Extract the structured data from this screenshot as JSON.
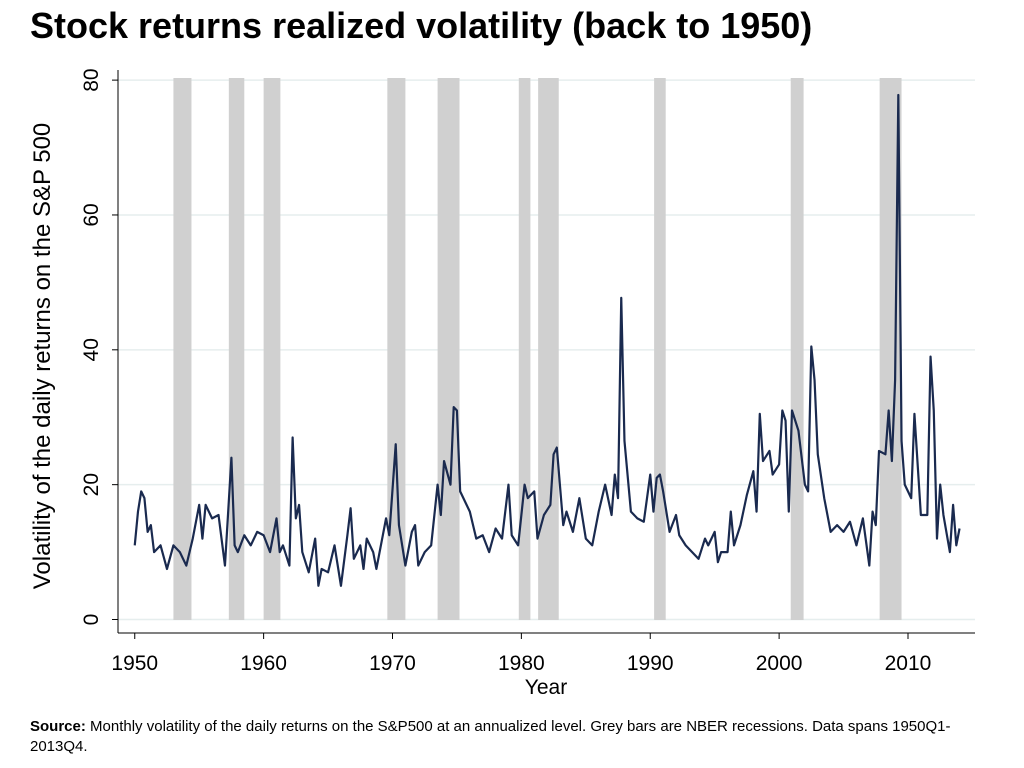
{
  "chart_data": {
    "type": "line",
    "title": "Stock returns realized volatility (back to 1950)",
    "x_label": "Year",
    "y_label": "Volatility of the daily returns on the S&P 500",
    "source_label": "Source:",
    "source_text": "Monthly volatility of the daily returns on the S&P500 at an annualized level. Grey bars are NBER recessions. Data spans 1950Q1-2013Q4.",
    "xlim": [
      1948.7,
      2015.2
    ],
    "xticks": [
      1950,
      1960,
      1970,
      1980,
      1990,
      2000,
      2010
    ],
    "ylim": [
      -2,
      81.5
    ],
    "yticks": [
      0,
      20,
      40,
      60,
      80
    ],
    "grid": true,
    "recession_color": "#d0d0d0",
    "recessions": [
      [
        1953.0,
        1954.4
      ],
      [
        1957.3,
        1958.5
      ],
      [
        1960.0,
        1961.3
      ],
      [
        1969.6,
        1971.0
      ],
      [
        1973.5,
        1975.2
      ],
      [
        1979.8,
        1980.7
      ],
      [
        1981.3,
        1982.9
      ],
      [
        1990.3,
        1991.2
      ],
      [
        2000.9,
        2001.9
      ],
      [
        2007.8,
        2009.5
      ]
    ],
    "series": [
      {
        "name": "Volatility",
        "color": "#1a2a4f",
        "x": [
          1950,
          1950.25,
          1950.5,
          1950.75,
          1951,
          1951.25,
          1951.5,
          1952,
          1952.5,
          1953,
          1953.5,
          1954,
          1954.5,
          1955,
          1955.25,
          1955.5,
          1956,
          1956.5,
          1957,
          1957.5,
          1957.75,
          1958,
          1958.5,
          1959,
          1959.5,
          1960,
          1960.5,
          1961,
          1961.25,
          1961.5,
          1962,
          1962.25,
          1962.5,
          1962.75,
          1963,
          1963.5,
          1964,
          1964.25,
          1964.5,
          1965,
          1965.5,
          1966,
          1966.5,
          1966.75,
          1967,
          1967.5,
          1967.75,
          1968,
          1968.5,
          1968.75,
          1969,
          1969.5,
          1969.75,
          1970.25,
          1970.5,
          1971,
          1971.5,
          1971.75,
          1972,
          1972.5,
          1973,
          1973.5,
          1973.75,
          1974,
          1974.5,
          1974.75,
          1975,
          1975.25,
          1975.5,
          1976,
          1976.5,
          1977,
          1977.5,
          1978,
          1978.5,
          1979,
          1979.25,
          1979.75,
          1980.25,
          1980.5,
          1981,
          1981.25,
          1981.75,
          1982.25,
          1982.5,
          1982.75,
          1983.25,
          1983.5,
          1984,
          1984.5,
          1985,
          1985.5,
          1986,
          1986.5,
          1987,
          1987.25,
          1987.5,
          1987.75,
          1988,
          1988.5,
          1989,
          1989.5,
          1990,
          1990.25,
          1990.5,
          1990.75,
          1991,
          1991.5,
          1992,
          1992.25,
          1992.75,
          1993.25,
          1993.75,
          1994.25,
          1994.5,
          1995,
          1995.25,
          1995.5,
          1996,
          1996.25,
          1996.5,
          1997,
          1997.5,
          1998,
          1998.25,
          1998.5,
          1998.75,
          1999.25,
          1999.5,
          2000,
          2000.25,
          2000.5,
          2000.75,
          2001,
          2001.5,
          2002,
          2002.25,
          2002.5,
          2002.75,
          2003,
          2003.5,
          2004,
          2004.5,
          2005,
          2005.5,
          2006,
          2006.5,
          2007,
          2007.25,
          2007.5,
          2007.75,
          2008.25,
          2008.5,
          2008.75,
          2009,
          2009.25,
          2009.5,
          2009.75,
          2010.25,
          2010.5,
          2011,
          2011.5,
          2011.75,
          2012,
          2012.25,
          2012.5,
          2012.75,
          2013.25,
          2013.5,
          2013.75,
          2014
        ],
        "values": [
          11,
          16,
          19,
          18,
          13,
          14,
          10,
          11,
          7.5,
          11,
          10,
          8,
          12,
          17,
          12,
          17,
          15,
          15.5,
          8,
          24,
          11,
          10,
          12.5,
          11,
          13,
          12.5,
          10,
          15,
          10,
          11,
          8,
          27,
          15,
          17,
          10,
          7,
          12,
          5,
          7.5,
          7,
          11,
          5,
          12.5,
          16.5,
          9,
          11,
          7.5,
          12,
          10,
          7.5,
          10,
          15,
          12.5,
          26,
          14,
          8,
          13,
          14,
          8,
          10,
          11,
          20,
          15.5,
          23.5,
          20,
          31.5,
          31,
          19,
          18,
          16,
          12,
          12.5,
          10,
          13.5,
          12,
          20,
          12.5,
          11,
          20,
          18,
          19,
          12,
          15.5,
          17,
          24.5,
          25.5,
          14,
          16,
          13,
          18,
          12,
          11,
          16,
          20,
          15.5,
          21.5,
          18,
          47.7,
          26.5,
          16,
          15,
          14.5,
          21.5,
          16,
          21,
          21.5,
          19,
          13,
          15.5,
          12.5,
          11,
          10,
          9,
          12,
          11,
          13,
          8.5,
          10,
          10,
          16,
          11,
          14,
          18.5,
          22,
          16,
          30.5,
          23.5,
          25,
          21.5,
          23,
          31,
          29.5,
          16,
          31,
          28,
          20,
          19,
          40.5,
          35.5,
          24.5,
          18,
          13,
          14,
          13,
          14.5,
          11,
          15,
          8,
          16,
          14,
          25,
          24.5,
          31,
          23.5,
          35.5,
          77.8,
          26.5,
          20,
          18,
          30.5,
          15.5,
          15.5,
          39,
          31,
          12,
          20,
          15.5,
          10,
          17,
          11,
          13.5
        ]
      }
    ]
  }
}
